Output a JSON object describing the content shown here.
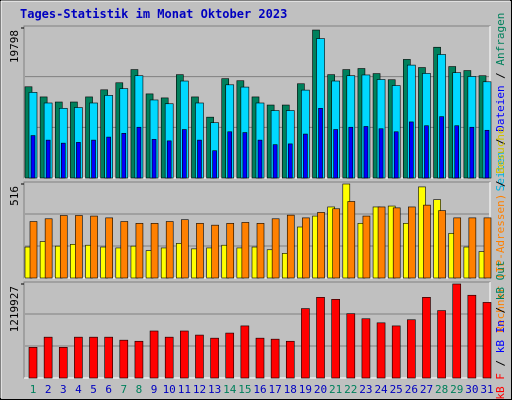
{
  "chart_data": [
    {
      "type": "bar",
      "title": "Tages-Statistik im Monat Oktober 2023",
      "categories": [
        "1",
        "2",
        "3",
        "4",
        "5",
        "6",
        "7",
        "8",
        "9",
        "10",
        "11",
        "12",
        "13",
        "14",
        "15",
        "16",
        "17",
        "18",
        "19",
        "20",
        "21",
        "22",
        "23",
        "24",
        "25",
        "26",
        "27",
        "28",
        "29",
        "30",
        "31"
      ],
      "category_colors": [
        "#00805c",
        "#0000c0",
        "#0000c0",
        "#0000c0",
        "#0000c0",
        "#0000c0",
        "#00805c",
        "#00805c",
        "#0000c0",
        "#0000c0",
        "#0000c0",
        "#0000c0",
        "#0000c0",
        "#00805c",
        "#00805c",
        "#0000c0",
        "#0000c0",
        "#0000c0",
        "#0000c0",
        "#0000c0",
        "#00805c",
        "#00805c",
        "#0000c0",
        "#0000c0",
        "#0000c0",
        "#0000c0",
        "#0000c0",
        "#00805c",
        "#00805c",
        "#0000c0",
        "#0000c0"
      ],
      "ylim": [
        0,
        19798
      ],
      "yticks": [
        19798
      ],
      "series": [
        {
          "name": "Anfragen",
          "color": "#00805c",
          "values": [
            12040,
            10700,
            10030,
            10030,
            10700,
            11640,
            12570,
            14310,
            11100,
            10570,
            13640,
            10700,
            8030,
            13110,
            12840,
            10700,
            9630,
            9630,
            12440,
            19530,
            13640,
            14310,
            14450,
            13780,
            12970,
            15650,
            14580,
            17260,
            14710,
            14180,
            13500
          ]
        },
        {
          "name": "Seiten",
          "color": "#00d8ff",
          "values": [
            11300,
            9900,
            9200,
            9300,
            9900,
            10900,
            11800,
            13500,
            10300,
            9800,
            12800,
            9900,
            7300,
            12300,
            12000,
            9900,
            8900,
            8900,
            11600,
            18400,
            12800,
            13500,
            13600,
            13000,
            12200,
            14900,
            13800,
            16300,
            13900,
            13400,
            12700
          ]
        },
        {
          "name": "Dateien",
          "color": "#0000ff",
          "values": [
            5600,
            5000,
            4600,
            4700,
            5000,
            5400,
            5900,
            6700,
            5100,
            4900,
            6400,
            5000,
            3600,
            6100,
            6000,
            5000,
            4400,
            4500,
            5800,
            9200,
            6400,
            6700,
            6800,
            6500,
            6100,
            7400,
            6900,
            8100,
            6900,
            6700,
            6300
          ]
        }
      ],
      "legend": [
        {
          "text": "Seiten",
          "color": "#00b0e0"
        },
        {
          "text": " / ",
          "color": "#000000"
        },
        {
          "text": "Dateien",
          "color": "#0000ff"
        },
        {
          "text": " / ",
          "color": "#000000"
        },
        {
          "text": "Anfragen",
          "color": "#00805c"
        }
      ]
    },
    {
      "type": "bar",
      "ylim": [
        0,
        516
      ],
      "yticks": [
        516
      ],
      "series": [
        {
          "name": "Besuche",
          "color": "#ffff00",
          "values": [
            170,
            200,
            175,
            185,
            180,
            170,
            165,
            175,
            150,
            165,
            190,
            160,
            165,
            180,
            165,
            170,
            155,
            135,
            280,
            340,
            390,
            516,
            300,
            390,
            395,
            300,
            500,
            430,
            245,
            170,
            145
          ]
        },
        {
          "name": "Rechner (IP-Adressen)",
          "color": "#ff8000",
          "values": [
            310,
            325,
            343,
            343,
            340,
            330,
            310,
            300,
            300,
            310,
            320,
            300,
            290,
            300,
            305,
            300,
            325,
            345,
            330,
            360,
            380,
            420,
            340,
            390,
            385,
            390,
            400,
            370,
            330,
            330,
            330
          ]
        }
      ],
      "legend": [
        {
          "text": "Rechner (IP-Adressen)",
          "color": "#ff8000"
        },
        {
          "text": " / ",
          "color": "#000000"
        },
        {
          "text": "Besuche",
          "color": "#d0c000"
        }
      ]
    },
    {
      "type": "bar",
      "ylim": [
        0,
        1219927
      ],
      "yticks": [
        1219927
      ],
      "series": [
        {
          "name": "kB F",
          "color": "#ff0000",
          "values": [
            398000,
            530000,
            398000,
            530000,
            530000,
            530000,
            491000,
            477000,
            610000,
            530000,
            610000,
            557000,
            517000,
            583000,
            676000,
            517000,
            504000,
            477000,
            901000,
            1047000,
            1021000,
            835000,
            769000,
            716000,
            676000,
            756000,
            1047000,
            875000,
            1219927,
            1074000,
            981000
          ]
        }
      ],
      "legend": [
        {
          "text": "kB F",
          "color": "#ff0000"
        },
        {
          "text": " / ",
          "color": "#000000"
        },
        {
          "text": "kB In",
          "color": "#0000ff"
        },
        {
          "text": " / ",
          "color": "#000000"
        },
        {
          "text": "kB Out",
          "color": "#00805c"
        }
      ]
    }
  ]
}
